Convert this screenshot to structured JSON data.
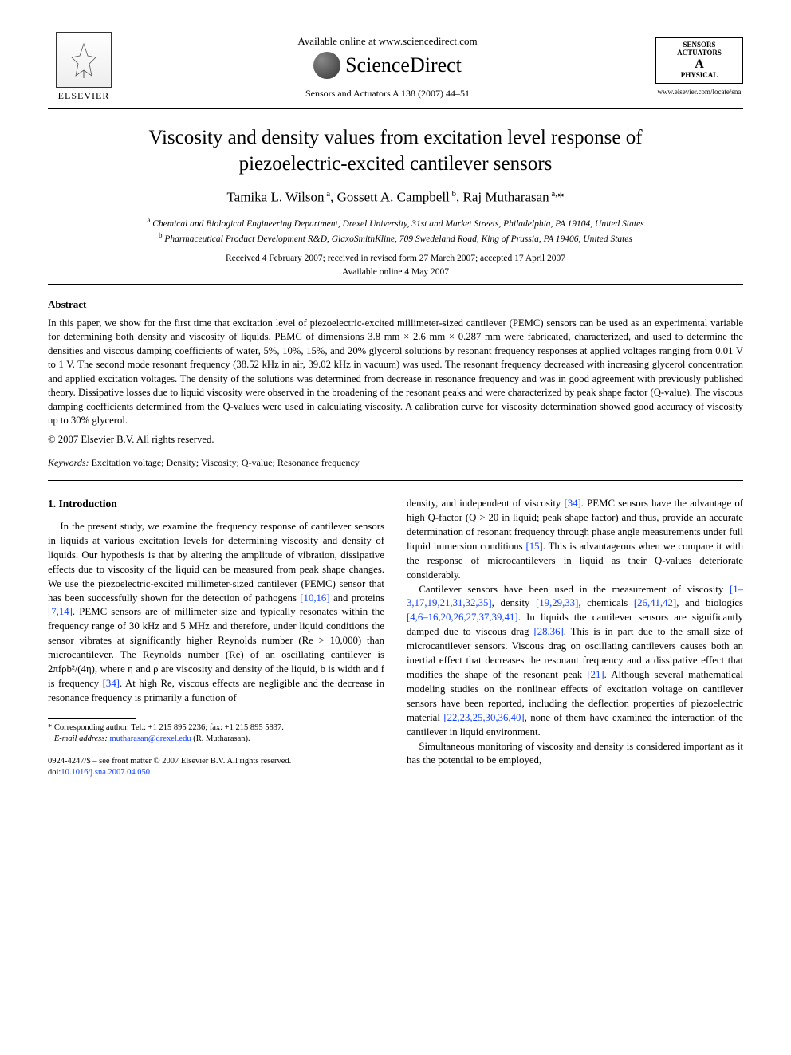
{
  "colors": {
    "text": "#000000",
    "link": "#0f3fff",
    "background": "#ffffff",
    "rule": "#000000"
  },
  "typography": {
    "body_font": "Times New Roman",
    "title_fontsize_pt": 19,
    "author_fontsize_pt": 13,
    "body_fontsize_pt": 10,
    "abstract_fontsize_pt": 9.5,
    "footnote_fontsize_pt": 8
  },
  "header": {
    "elsevier_label": "ELSEVIER",
    "available_online": "Available online at www.sciencedirect.com",
    "sciencedirect": "ScienceDirect",
    "journal_ref": "Sensors and Actuators A 138 (2007) 44–51",
    "journal_logo_l1": "SENSORS",
    "journal_logo_l2": "ACTUATORS",
    "journal_logo_l3": "A",
    "journal_logo_l4": "PHYSICAL",
    "journal_url": "www.elsevier.com/locate/sna"
  },
  "title": "Viscosity and density values from excitation level response of piezoelectric-excited cantilever sensors",
  "authors_html": "Tamika L. Wilson<sup> a</sup>, Gossett A. Campbell<sup> b</sup>, Raj Mutharasan<sup> a,</sup>*",
  "affiliations": {
    "a": "Chemical and Biological Engineering Department, Drexel University, 31st and Market Streets, Philadelphia, PA 19104, United States",
    "b": "Pharmaceutical Product Development R&D, GlaxoSmithKline, 709 Swedeland Road, King of Prussia, PA 19406, United States"
  },
  "dates": {
    "history": "Received 4 February 2007; received in revised form 27 March 2007; accepted 17 April 2007",
    "online": "Available online 4 May 2007"
  },
  "abstract_heading": "Abstract",
  "abstract": "In this paper, we show for the first time that excitation level of piezoelectric-excited millimeter-sized cantilever (PEMC) sensors can be used as an experimental variable for determining both density and viscosity of liquids. PEMC of dimensions 3.8 mm × 2.6 mm × 0.287 mm were fabricated, characterized, and used to determine the densities and viscous damping coefficients of water, 5%, 10%, 15%, and 20% glycerol solutions by resonant frequency responses at applied voltages ranging from 0.01 V to 1 V. The second mode resonant frequency (38.52 kHz in air, 39.02 kHz in vacuum) was used. The resonant frequency decreased with increasing glycerol concentration and applied excitation voltages. The density of the solutions was determined from decrease in resonance frequency and was in good agreement with previously published theory. Dissipative losses due to liquid viscosity were observed in the broadening of the resonant peaks and were characterized by peak shape factor (Q-value). The viscous damping coefficients determined from the Q-values were used in calculating viscosity. A calibration curve for viscosity determination showed good accuracy of viscosity up to 30% glycerol.",
  "copyright": "© 2007 Elsevier B.V. All rights reserved.",
  "keywords_label": "Keywords:",
  "keywords": "Excitation voltage; Density; Viscosity; Q-value; Resonance frequency",
  "section1_heading": "1.  Introduction",
  "col_left_p1_a": "In the present study, we examine the frequency response of cantilever sensors in liquids at various excitation levels for determining viscosity and density of liquids. Our hypothesis is that by altering the amplitude of vibration, dissipative effects due to viscosity of the liquid can be measured from peak shape changes. We use the piezoelectric-excited millimeter-sized cantilever (PEMC) sensor that has been successfully shown for the detection of pathogens ",
  "ref_10_16": "[10,16]",
  "col_left_p1_b": " and proteins ",
  "ref_7_14": "[7,14]",
  "col_left_p1_c": ". PEMC sensors are of millimeter size and typically resonates within the frequency range of 30 kHz and 5 MHz and therefore, under liquid conditions the sensor vibrates at significantly higher Reynolds number (Re > 10,000) than microcantilever. The Reynolds number (Re) of an oscillating cantilever is 2πfρb²/(4η), where η and ρ are viscosity and density of the liquid, b is width and f is frequency ",
  "ref_34a": "[34]",
  "col_left_p1_d": ". At high Re, viscous effects are negligible and the decrease in resonance frequency is primarily a function of",
  "col_right_p1_a": "density, and independent of viscosity ",
  "ref_34b": "[34]",
  "col_right_p1_b": ". PEMC sensors have the advantage of high Q-factor (Q > 20 in liquid; peak shape factor) and thus, provide an accurate determination of resonant frequency through phase angle measurements under full liquid immersion conditions ",
  "ref_15": "[15]",
  "col_right_p1_c": ". This is advantageous when we compare it with the response of microcantilevers in liquid as their Q-values deteriorate considerably.",
  "col_right_p2_a": "Cantilever sensors have been used in the measurement of viscosity ",
  "ref_grp1": "[1–3,17,19,21,31,32,35]",
  "col_right_p2_b": ", density ",
  "ref_grp2": "[19,29,33]",
  "col_right_p2_c": ", chemicals ",
  "ref_grp3": "[26,41,42]",
  "col_right_p2_d": ", and biologics ",
  "ref_grp4": "[4,6–16,20,26,27,37,39,41]",
  "col_right_p2_e": ". In liquids the cantilever sensors are significantly damped due to viscous drag ",
  "ref_grp5": "[28,36]",
  "col_right_p2_f": ". This is in part due to the small size of microcantilever sensors. Viscous drag on oscillating cantilevers causes both an inertial effect that decreases the resonant frequency and a dissipative effect that modifies the shape of the resonant peak ",
  "ref_21": "[21]",
  "col_right_p2_g": ". Although several mathematical modeling studies on the nonlinear effects of excitation voltage on cantilever sensors have been reported, including the deflection properties of piezoelectric material ",
  "ref_grp6": "[22,23,25,30,36,40]",
  "col_right_p2_h": ", none of them have examined the interaction of the cantilever in liquid environment.",
  "col_right_p3": "Simultaneous monitoring of viscosity and density is considered important as it has the potential to be employed,",
  "footnote": {
    "marker": "*",
    "text": " Corresponding author. Tel.: +1 215 895 2236; fax: +1 215 895 5837.",
    "email_label": "E-mail address:",
    "email": "mutharasan@drexel.edu",
    "email_paren": " (R. Mutharasan)."
  },
  "footer": {
    "line1": "0924-4247/$ – see front matter © 2007 Elsevier B.V. All rights reserved.",
    "doi_label": "doi:",
    "doi": "10.1016/j.sna.2007.04.050"
  }
}
